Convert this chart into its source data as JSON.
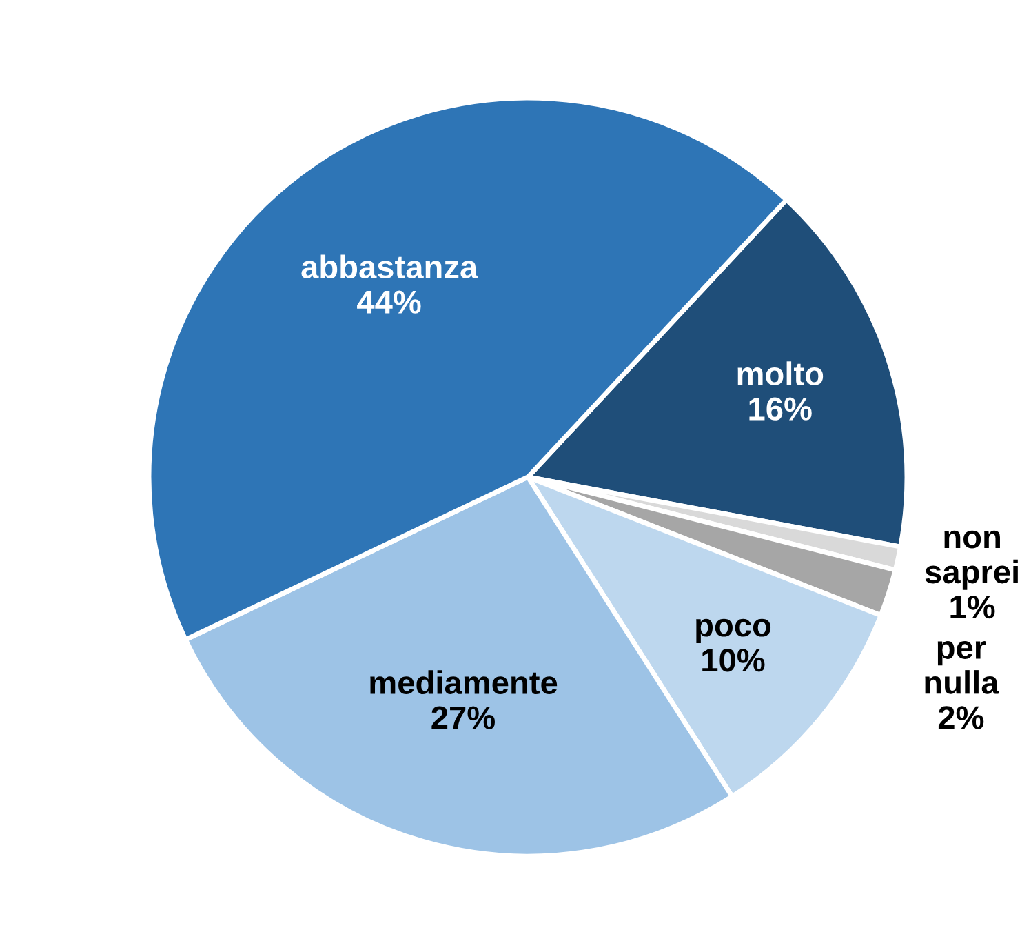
{
  "chart_data": {
    "type": "pie",
    "categories": [
      "molto",
      "non saprei",
      "per nulla",
      "poco",
      "mediamente",
      "abbastanza"
    ],
    "values": [
      16,
      1,
      2,
      10,
      27,
      44
    ],
    "value_labels": [
      "16%",
      "1%",
      "2%",
      "10%",
      "27%",
      "44%"
    ],
    "colors": [
      "#1f4e79",
      "#d9d9d9",
      "#a6a6a6",
      "#bdd7ee",
      "#9dc3e6",
      "#2e75b6"
    ]
  }
}
